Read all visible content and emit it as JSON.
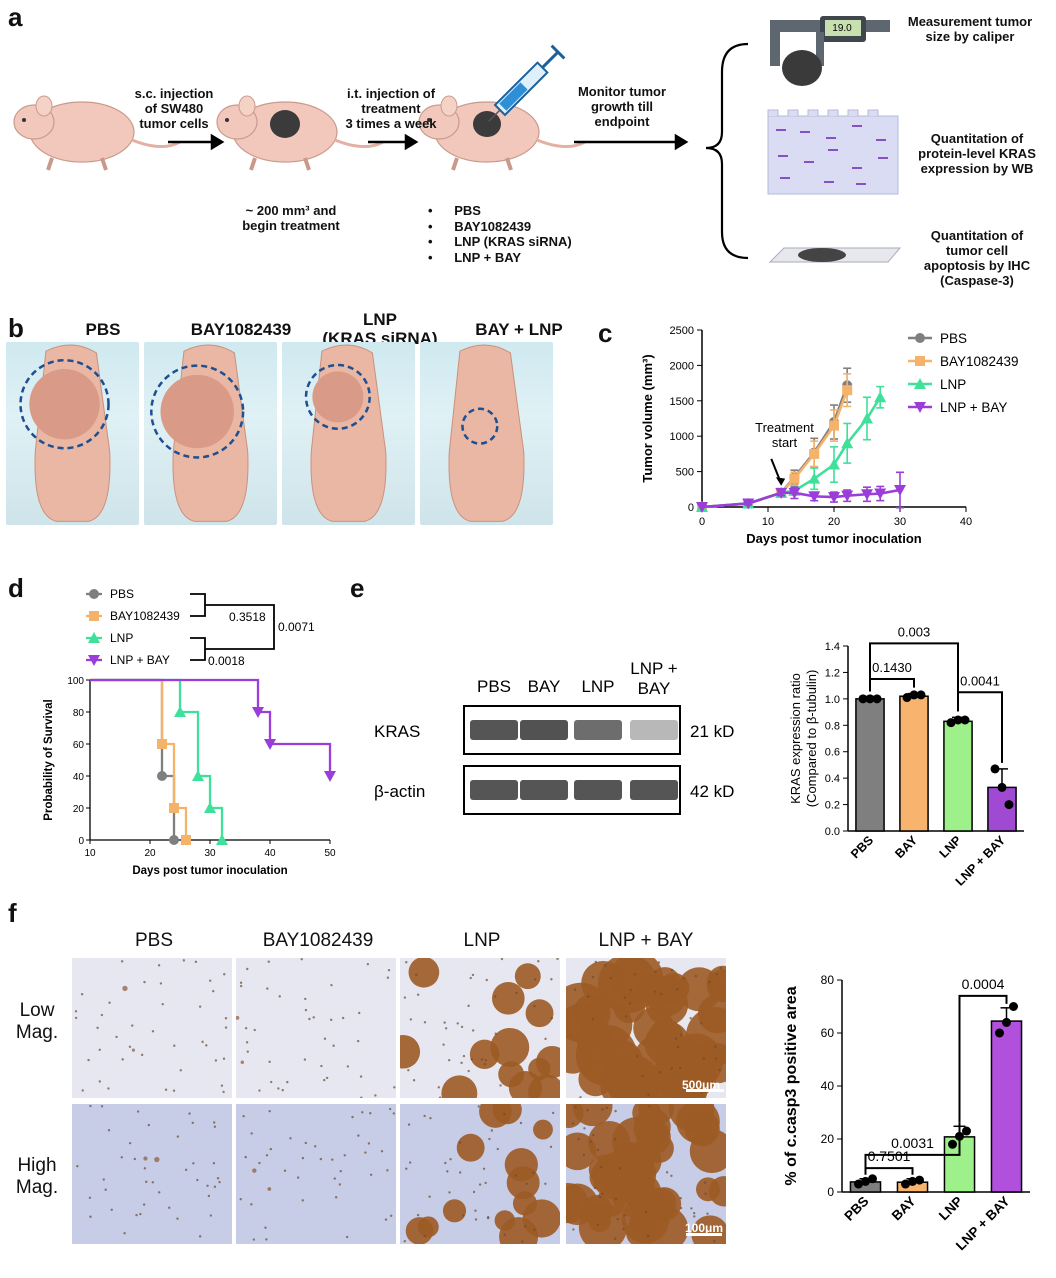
{
  "panels": {
    "a": "a",
    "b": "b",
    "c": "c",
    "d": "d",
    "e": "e",
    "f": "f"
  },
  "a": {
    "step1": "s.c. injection of SW480 tumor cells",
    "step1_lines": [
      "s.c. injection",
      "of SW480",
      "tumor cells"
    ],
    "step2_lines": [
      "i.t. injection of",
      "treatment",
      "3 times a week"
    ],
    "step3_lines": [
      "Monitor tumor",
      "growth till",
      "endpoint"
    ],
    "size_note_lines": [
      "~ 200 mm³ and",
      "begin treatment"
    ],
    "treatments": [
      "PBS",
      "BAY1082439",
      "LNP (KRAS siRNA)",
      "LNP + BAY"
    ],
    "caliper_reading": "19.0",
    "outcome1_lines": [
      "Measurement tumor",
      "size by caliper"
    ],
    "outcome2_lines": [
      "Quantitation of",
      "protein-level KRAS",
      "expression by WB"
    ],
    "outcome3_lines": [
      "Quantitation of",
      "tumor cell",
      "apoptosis by IHC",
      "(Caspase-3)"
    ]
  },
  "b": {
    "titles": [
      "PBS",
      "BAY1082439",
      "LNP",
      "(KRAS siRNA)",
      "BAY + LNP"
    ],
    "tumor_circle_scale": [
      1.0,
      1.05,
      0.68,
      0.3
    ]
  },
  "f": {
    "col_titles": [
      "PBS",
      "BAY1082439",
      "LNP",
      "LNP + BAY"
    ],
    "row_low": [
      "Low",
      "Mag."
    ],
    "row_high": [
      "High",
      "Mag."
    ],
    "scale_low": "500μm",
    "scale_high": "100μm",
    "stain_fraction": [
      0.04,
      0.04,
      0.21,
      0.65
    ]
  },
  "chart_data": [
    {
      "id": "c",
      "type": "line",
      "xlabel": "Days post tumor inoculation",
      "ylabel": "Tumor volume (mm³)",
      "xlim": [
        0,
        40
      ],
      "ylim": [
        0,
        2500
      ],
      "xticks": [
        0,
        10,
        20,
        30,
        40
      ],
      "yticks": [
        0,
        500,
        1000,
        1500,
        2000,
        2500
      ],
      "annotation": [
        "Treatment",
        "start"
      ],
      "series": [
        {
          "name": "PBS",
          "color": "#7f7f7f",
          "marker": "circle",
          "x": [
            0,
            7,
            12,
            14,
            17,
            20,
            22
          ],
          "y": [
            0,
            50,
            200,
            420,
            770,
            1200,
            1720
          ],
          "err": [
            0,
            20,
            40,
            100,
            200,
            240,
            240
          ]
        },
        {
          "name": "BAY1082439",
          "color": "#f4b26b",
          "marker": "square",
          "x": [
            0,
            7,
            12,
            14,
            17,
            20,
            22
          ],
          "y": [
            0,
            50,
            200,
            400,
            750,
            1150,
            1650
          ],
          "err": [
            0,
            20,
            40,
            90,
            180,
            220,
            230
          ]
        },
        {
          "name": "LNP",
          "color": "#3ee09a",
          "marker": "triangle",
          "x": [
            0,
            7,
            12,
            14,
            17,
            20,
            22,
            25,
            27
          ],
          "y": [
            0,
            50,
            200,
            230,
            400,
            600,
            900,
            1250,
            1550
          ],
          "err": [
            0,
            20,
            40,
            60,
            150,
            250,
            280,
            300,
            150
          ]
        },
        {
          "name": "LNP + BAY",
          "color": "#9b3ed9",
          "marker": "triangle-down",
          "x": [
            0,
            7,
            12,
            14,
            17,
            20,
            22,
            25,
            27,
            30
          ],
          "y": [
            0,
            50,
            200,
            200,
            150,
            140,
            160,
            180,
            190,
            240
          ],
          "err": [
            0,
            20,
            40,
            80,
            60,
            70,
            80,
            100,
            100,
            250
          ]
        }
      ]
    },
    {
      "id": "d",
      "type": "line",
      "xlabel": "Days post tumor inoculation",
      "ylabel": "Probability of Survival",
      "xlim": [
        10,
        50
      ],
      "ylim": [
        0,
        100
      ],
      "xticks": [
        10,
        20,
        30,
        40,
        50
      ],
      "yticks": [
        0,
        20,
        40,
        60,
        80,
        100
      ],
      "legend": [
        "PBS",
        "BAY1082439",
        "LNP",
        "LNP + BAY"
      ],
      "comparisons": [
        {
          "groups": [
            "PBS",
            "BAY1082439"
          ],
          "p": "0.3518"
        },
        {
          "groups": [
            "BAY1082439",
            "LNP + BAY"
          ],
          "p": "0.0071"
        },
        {
          "groups": [
            "LNP",
            "LNP + BAY"
          ],
          "p": "0.0018"
        }
      ],
      "series": [
        {
          "name": "PBS",
          "color": "#7f7f7f",
          "marker": "circle",
          "steps": [
            [
              10,
              100
            ],
            [
              22,
              100
            ],
            [
              22,
              40
            ],
            [
              24,
              40
            ],
            [
              24,
              0
            ]
          ],
          "censor": [
            [
              22,
              40
            ],
            [
              24,
              0
            ]
          ]
        },
        {
          "name": "BAY1082439",
          "color": "#f4b26b",
          "marker": "square",
          "steps": [
            [
              10,
              100
            ],
            [
              22,
              100
            ],
            [
              22,
              60
            ],
            [
              24,
              60
            ],
            [
              24,
              20
            ],
            [
              26,
              20
            ],
            [
              26,
              0
            ]
          ],
          "censor": [
            [
              22,
              60
            ],
            [
              24,
              20
            ],
            [
              26,
              0
            ]
          ]
        },
        {
          "name": "LNP",
          "color": "#3ee09a",
          "marker": "triangle",
          "steps": [
            [
              10,
              100
            ],
            [
              25,
              100
            ],
            [
              25,
              80
            ],
            [
              28,
              80
            ],
            [
              28,
              40
            ],
            [
              30,
              40
            ],
            [
              30,
              20
            ],
            [
              32,
              20
            ],
            [
              32,
              0
            ]
          ],
          "censor": [
            [
              25,
              80
            ],
            [
              28,
              40
            ],
            [
              30,
              20
            ],
            [
              32,
              0
            ]
          ]
        },
        {
          "name": "LNP + BAY",
          "color": "#9b3ed9",
          "marker": "triangle-down",
          "steps": [
            [
              10,
              100
            ],
            [
              38,
              100
            ],
            [
              38,
              80
            ],
            [
              40,
              80
            ],
            [
              40,
              60
            ],
            [
              50,
              60
            ],
            [
              50,
              40
            ]
          ],
          "censor": [
            [
              38,
              80
            ],
            [
              40,
              60
            ],
            [
              50,
              40
            ]
          ]
        }
      ]
    },
    {
      "id": "e-blot",
      "type": "table",
      "lanes": [
        "PBS",
        "BAY",
        "LNP",
        "LNP +",
        "BAY"
      ],
      "rows": [
        {
          "label": "KRAS",
          "size": "21 kD",
          "intensity": [
            1.0,
            1.02,
            0.84,
            0.34
          ]
        },
        {
          "label": "β-actin",
          "size": "42 kD",
          "intensity": [
            1,
            1,
            1,
            1
          ]
        }
      ]
    },
    {
      "id": "e",
      "type": "bar",
      "categories": [
        "PBS",
        "BAY",
        "LNP",
        "LNP + BAY"
      ],
      "colors": [
        "#7f7f7f",
        "#f8b46e",
        "#9ef08a",
        "#a04ad4"
      ],
      "values": [
        1.0,
        1.02,
        0.83,
        0.33
      ],
      "err": [
        0.01,
        0.02,
        0.03,
        0.14
      ],
      "points": [
        [
          1.0,
          1.0,
          1.0
        ],
        [
          1.01,
          1.03,
          1.03
        ],
        [
          0.82,
          0.84,
          0.84
        ],
        [
          0.47,
          0.33,
          0.2
        ]
      ],
      "ylabel": [
        "KRAS expression ratio",
        "(Compared to β-tubulin)"
      ],
      "ylim": [
        0,
        1.4
      ],
      "yticks": [
        0.0,
        0.2,
        0.4,
        0.6,
        0.8,
        1.0,
        1.2,
        1.4
      ],
      "comparisons": [
        {
          "a": 0,
          "b": 1,
          "p": "0.1430"
        },
        {
          "a": 0,
          "b": 2,
          "p": "0.003"
        },
        {
          "a": 2,
          "b": 3,
          "p": "0.0041"
        }
      ]
    },
    {
      "id": "f",
      "type": "bar",
      "categories": [
        "PBS",
        "BAY",
        "LNP",
        "LNP + BAY"
      ],
      "colors": [
        "#7f7f7f",
        "#f8b46e",
        "#9ef08a",
        "#b050dd"
      ],
      "values": [
        3.8,
        3.7,
        20.8,
        64.5
      ],
      "err": [
        1.2,
        1.3,
        4.0,
        5.0
      ],
      "points": [
        [
          3,
          4,
          5
        ],
        [
          3,
          4,
          4.5
        ],
        [
          18,
          21,
          23
        ],
        [
          60,
          64,
          70
        ]
      ],
      "ylabel": "% of c.casp3 positive area",
      "ylim": [
        0,
        80
      ],
      "yticks": [
        0,
        20,
        40,
        60,
        80
      ],
      "comparisons": [
        {
          "a": 0,
          "b": 1,
          "p": "0.7501"
        },
        {
          "a": 0,
          "b": 2,
          "p": "0.0031"
        },
        {
          "a": 2,
          "b": 3,
          "p": "0.0004"
        }
      ]
    }
  ]
}
